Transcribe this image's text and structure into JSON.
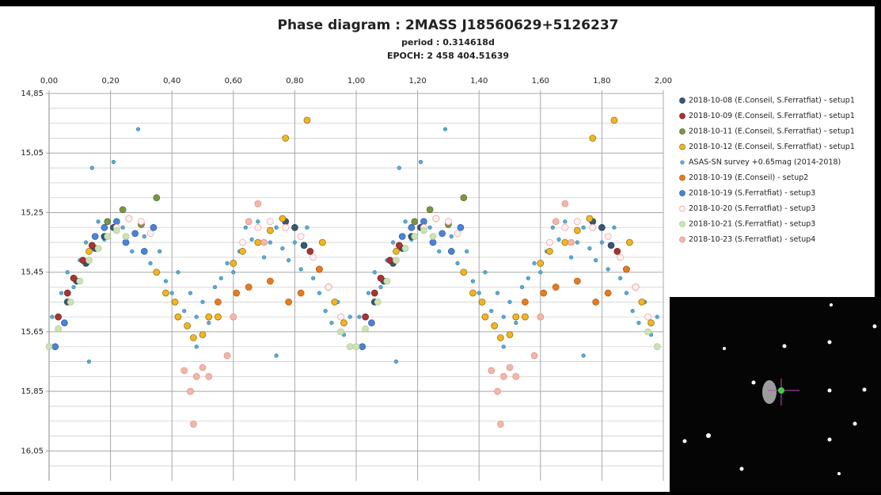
{
  "chart_data": {
    "type": "scatter",
    "title": "Phase diagram : 2MASS J18560629+5126237",
    "subtitle": "period : 0.314618d",
    "subtitle2": "EPOCH: 2 458 404.51639",
    "xlim": [
      0,
      2
    ],
    "ylim": [
      14.85,
      16.15
    ],
    "y_inverted": true,
    "grid": true,
    "legend": "right",
    "xticks": [
      {
        "value": 0,
        "label": "0,00"
      },
      {
        "value": 0.2,
        "label": "0,20"
      },
      {
        "value": 0.4,
        "label": "0,40"
      },
      {
        "value": 0.6,
        "label": "0,60"
      },
      {
        "value": 0.8,
        "label": "0,80"
      },
      {
        "value": 1,
        "label": "1,00"
      },
      {
        "value": 1.2,
        "label": "1,20"
      },
      {
        "value": 1.4,
        "label": "1,40"
      },
      {
        "value": 1.6,
        "label": "1,60"
      },
      {
        "value": 1.8,
        "label": "1,80"
      },
      {
        "value": 2,
        "label": "2,00"
      }
    ],
    "yticks": [
      {
        "value": 14.85,
        "label": "14,85"
      },
      {
        "value": 15.05,
        "label": "15,05"
      },
      {
        "value": 15.25,
        "label": "15,25"
      },
      {
        "value": 15.45,
        "label": "15,45"
      },
      {
        "value": 15.65,
        "label": "15,65"
      },
      {
        "value": 15.85,
        "label": "15,85"
      },
      {
        "value": 16.05,
        "label": "16,05"
      }
    ],
    "minor_yticks": [
      14.9,
      14.95,
      15,
      15.1,
      15.15,
      15.2,
      15.3,
      15.35,
      15.4,
      15.5,
      15.55,
      15.6,
      15.7,
      15.75,
      15.8,
      15.9,
      15.95,
      16,
      16.1
    ],
    "series": [
      {
        "name": "2018-10-08 (E.Conseil, S.Ferratfiat) - setup1",
        "color": "#3b5672",
        "edgecolor": "#2a3f55",
        "marker_size": 4,
        "x": [
          0.06,
          0.09,
          0.12,
          0.15,
          0.18,
          0.21,
          0.77,
          0.8,
          0.83,
          1.06,
          1.09,
          1.12,
          1.15,
          1.18,
          1.21,
          1.77,
          1.8,
          1.83
        ],
        "values": [
          15.55,
          15.48,
          15.42,
          15.37,
          15.33,
          15.3,
          15.28,
          15.3,
          15.36,
          15.55,
          15.48,
          15.42,
          15.37,
          15.33,
          15.3,
          15.28,
          15.3,
          15.36
        ]
      },
      {
        "name": "2018-10-09 (E.Conseil, S.Ferratfiat) - setup1",
        "color": "#a83434",
        "edgecolor": "#7a2020",
        "marker_size": 4,
        "x": [
          0.03,
          0.06,
          0.08,
          0.11,
          0.14,
          0.85,
          0.88,
          0.91,
          1.03,
          1.06,
          1.08,
          1.11,
          1.14,
          1.85,
          1.88,
          1.91
        ],
        "values": [
          15.6,
          15.52,
          15.47,
          15.41,
          15.36,
          15.38,
          15.44,
          15.5,
          15.6,
          15.52,
          15.47,
          15.41,
          15.36,
          15.38,
          15.44,
          15.5
        ]
      },
      {
        "name": "2018-10-11 (E.Conseil, S.Ferratfiat) - setup1",
        "color": "#7a9446",
        "edgecolor": "#5a7030",
        "marker_size": 4,
        "x": [
          0.19,
          0.24,
          0.3,
          0.35,
          1.19,
          1.24,
          1.3,
          1.35
        ],
        "values": [
          15.28,
          15.24,
          15.29,
          15.2,
          15.28,
          15.24,
          15.29,
          15.2
        ]
      },
      {
        "name": "2018-10-12 (E.Conseil, S.Ferratfiat) - setup1",
        "color": "#f2b522",
        "edgecolor": "#8a6a10",
        "marker_size": 4,
        "x": [
          0.13,
          0.26,
          0.35,
          0.38,
          0.41,
          0.42,
          0.45,
          0.47,
          0.5,
          0.52,
          0.55,
          0.6,
          0.63,
          0.68,
          0.72,
          0.76,
          0.77,
          0.84,
          0.89,
          0.93,
          0.96,
          1.13,
          1.26,
          1.35,
          1.38,
          1.41,
          1.42,
          1.45,
          1.47,
          1.5,
          1.52,
          1.55,
          1.6,
          1.63,
          1.68,
          1.72,
          1.76,
          1.77,
          1.84,
          1.89,
          1.93,
          1.96
        ],
        "values": [
          15.38,
          15.27,
          15.45,
          15.52,
          15.55,
          15.6,
          15.63,
          15.67,
          15.66,
          15.6,
          15.6,
          15.42,
          15.38,
          15.35,
          15.31,
          15.27,
          15.0,
          14.94,
          15.35,
          15.55,
          15.62,
          15.38,
          15.27,
          15.45,
          15.52,
          15.55,
          15.6,
          15.63,
          15.67,
          15.66,
          15.6,
          15.6,
          15.42,
          15.38,
          15.35,
          15.31,
          15.27,
          15.0,
          14.94,
          15.35,
          15.55,
          15.62
        ]
      },
      {
        "name": "ASAS-SN survey +0.65mag (2014-2018)",
        "color": "#5aaad2",
        "edgecolor": "#3f8ab0",
        "marker_size": 2.3,
        "x": [
          0.01,
          0.04,
          0.06,
          0.08,
          0.1,
          0.12,
          0.14,
          0.16,
          0.18,
          0.21,
          0.24,
          0.27,
          0.29,
          0.31,
          0.33,
          0.36,
          0.38,
          0.4,
          0.42,
          0.44,
          0.46,
          0.48,
          0.5,
          0.52,
          0.54,
          0.56,
          0.58,
          0.6,
          0.62,
          0.64,
          0.66,
          0.68,
          0.7,
          0.72,
          0.74,
          0.76,
          0.78,
          0.8,
          0.82,
          0.84,
          0.86,
          0.88,
          0.9,
          0.92,
          0.94,
          0.96,
          0.98,
          0.13,
          0.74,
          0.48,
          1.01,
          1.04,
          1.06,
          1.08,
          1.1,
          1.12,
          1.14,
          1.16,
          1.18,
          1.21,
          1.24,
          1.27,
          1.29,
          1.31,
          1.33,
          1.36,
          1.38,
          1.4,
          1.42,
          1.44,
          1.46,
          1.48,
          1.5,
          1.52,
          1.54,
          1.56,
          1.58,
          1.6,
          1.62,
          1.64,
          1.66,
          1.68,
          1.7,
          1.72,
          1.74,
          1.76,
          1.78,
          1.8,
          1.82,
          1.84,
          1.86,
          1.88,
          1.9,
          1.92,
          1.94,
          1.96,
          1.98,
          1.13,
          1.74,
          1.48
        ],
        "values": [
          15.6,
          15.52,
          15.45,
          15.5,
          15.41,
          15.35,
          15.1,
          15.28,
          15.34,
          15.08,
          15.3,
          15.38,
          14.97,
          15.33,
          15.42,
          15.38,
          15.48,
          15.52,
          15.45,
          15.58,
          15.52,
          15.6,
          15.55,
          15.62,
          15.5,
          15.47,
          15.42,
          15.45,
          15.38,
          15.3,
          15.34,
          15.28,
          15.4,
          15.35,
          15.3,
          15.37,
          15.41,
          15.35,
          15.44,
          15.3,
          15.47,
          15.52,
          15.58,
          15.62,
          15.55,
          15.66,
          15.6,
          15.75,
          15.73,
          15.7,
          15.6,
          15.52,
          15.45,
          15.5,
          15.41,
          15.35,
          15.1,
          15.28,
          15.34,
          15.08,
          15.3,
          15.38,
          14.97,
          15.33,
          15.42,
          15.38,
          15.48,
          15.52,
          15.45,
          15.58,
          15.52,
          15.6,
          15.55,
          15.62,
          15.5,
          15.47,
          15.42,
          15.45,
          15.38,
          15.3,
          15.34,
          15.28,
          15.4,
          15.35,
          15.3,
          15.37,
          15.41,
          15.35,
          15.44,
          15.3,
          15.47,
          15.52,
          15.58,
          15.62,
          15.55,
          15.66,
          15.6,
          15.75,
          15.73,
          15.7
        ]
      },
      {
        "name": "2018-10-19 (E.Conseil) - setup2",
        "color": "#e47c22",
        "edgecolor": "#b05a10",
        "marker_size": 4,
        "x": [
          0.55,
          0.61,
          0.65,
          0.72,
          0.78,
          0.82,
          0.88,
          1.55,
          1.61,
          1.65,
          1.72,
          1.78,
          1.82,
          1.88
        ],
        "values": [
          15.55,
          15.52,
          15.5,
          15.48,
          15.55,
          15.52,
          15.44,
          15.55,
          15.52,
          15.5,
          15.48,
          15.55,
          15.52,
          15.44
        ]
      },
      {
        "name": "2018-10-19 (S.Ferratfiat) - setup3",
        "color": "#4b82d4",
        "edgecolor": "#3060a8",
        "marker_size": 4,
        "x": [
          0.02,
          0.05,
          0.15,
          0.18,
          0.22,
          0.25,
          0.28,
          0.31,
          0.34,
          1.02,
          1.05,
          1.15,
          1.18,
          1.22,
          1.25,
          1.28,
          1.31,
          1.34
        ],
        "values": [
          15.7,
          15.62,
          15.33,
          15.3,
          15.28,
          15.35,
          15.32,
          15.38,
          15.3,
          15.7,
          15.62,
          15.33,
          15.3,
          15.28,
          15.35,
          15.32,
          15.38,
          15.3
        ]
      },
      {
        "name": "2018-10-20 (S.Ferratfiat) - setup3",
        "color": "#fdf2f2",
        "edgecolor": "#e8a0a0",
        "marker_size": 4,
        "x": [
          0.22,
          0.26,
          0.3,
          0.33,
          0.63,
          0.68,
          0.72,
          0.77,
          0.82,
          0.86,
          0.91,
          0.95,
          1.22,
          1.26,
          1.3,
          1.33,
          1.63,
          1.68,
          1.72,
          1.77,
          1.82,
          1.86,
          1.91,
          1.95
        ],
        "values": [
          15.3,
          15.27,
          15.28,
          15.32,
          15.35,
          15.3,
          15.28,
          15.3,
          15.33,
          15.4,
          15.5,
          15.6,
          15.3,
          15.27,
          15.28,
          15.32,
          15.35,
          15.3,
          15.28,
          15.3,
          15.33,
          15.4,
          15.5,
          15.6
        ]
      },
      {
        "name": "2018-10-21 (S.Ferratfiat) - setup3",
        "color": "#cde3b6",
        "edgecolor": "#a8c890",
        "marker_size": 4,
        "x": [
          0,
          0.03,
          0.07,
          0.1,
          0.13,
          0.16,
          0.19,
          0.22,
          0.25,
          0.95,
          0.98,
          1,
          1.03,
          1.07,
          1.1,
          1.13,
          1.16,
          1.19,
          1.22,
          1.25,
          1.95,
          1.98
        ],
        "values": [
          15.7,
          15.64,
          15.55,
          15.48,
          15.41,
          15.37,
          15.33,
          15.31,
          15.33,
          15.65,
          15.7,
          15.7,
          15.64,
          15.55,
          15.48,
          15.41,
          15.37,
          15.33,
          15.31,
          15.33,
          15.65,
          15.7
        ]
      },
      {
        "name": "2018-10-23 (S.Ferratfiat) - setup4",
        "color": "#f2b7a8",
        "edgecolor": "#d89080",
        "marker_size": 4,
        "x": [
          0.44,
          0.46,
          0.47,
          0.48,
          0.5,
          0.52,
          0.58,
          0.6,
          0.65,
          0.68,
          0.7,
          1.44,
          1.46,
          1.47,
          1.48,
          1.5,
          1.52,
          1.58,
          1.6,
          1.65,
          1.68,
          1.7
        ],
        "values": [
          15.78,
          15.85,
          15.96,
          15.8,
          15.77,
          15.8,
          15.73,
          15.6,
          15.28,
          15.22,
          15.35,
          15.78,
          15.85,
          15.96,
          15.8,
          15.77,
          15.8,
          15.73,
          15.6,
          15.28,
          15.22,
          15.35
        ]
      }
    ]
  }
}
